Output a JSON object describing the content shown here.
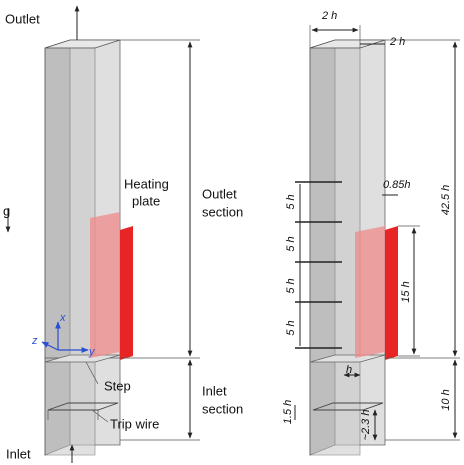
{
  "left": {
    "outlet": "Outlet",
    "gravity": "g",
    "heating_plate": [
      "Heating",
      "plate"
    ],
    "outlet_section": [
      "Outlet",
      "section"
    ],
    "axes": {
      "z": "z",
      "x": "x",
      "y": "y"
    },
    "step": "Step",
    "inlet_section": [
      "Inlet",
      "section"
    ],
    "trip_wire": "Trip wire",
    "inlet": "Inlet"
  },
  "right": {
    "width_top": "2 h",
    "depth_top": "2 h",
    "plate_offset": "0.85h",
    "outlet_length": "42.5 h",
    "spacings": [
      "5 h",
      "5 h",
      "5 h",
      "5 h"
    ],
    "plate_length": "15 h",
    "step_height": "h",
    "inlet_length": "10 h",
    "wire_size": "1.5 h",
    "wire_position": "~2.3 h"
  }
}
